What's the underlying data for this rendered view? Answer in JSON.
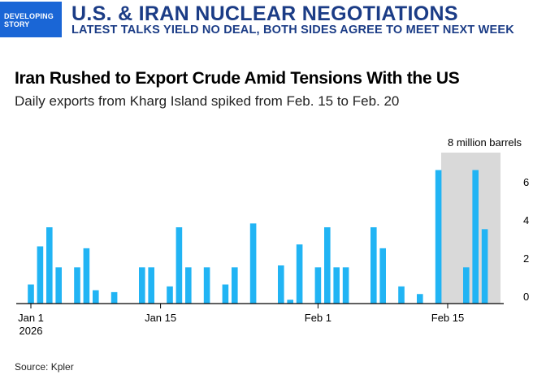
{
  "banner": {
    "badge": "DEVELOPING\nSTORY",
    "headline": "U.S. & IRAN NUCLEAR NEGOTIATIONS",
    "subheadline": "LATEST TALKS YIELD NO DEAL, BOTH SIDES AGREE TO MEET NEXT WEEK"
  },
  "colors": {
    "bar": "#21b4f4",
    "highlight": "#d9d9d9",
    "banner_text": "#1b3c86",
    "badge_bg": "#1a66d6"
  },
  "chart_data": {
    "type": "bar",
    "title": "Iran Rushed to Export Crude Amid Tensions With the US",
    "subtitle": "Daily exports from Kharg Island spiked from Feb. 15 to Feb. 20",
    "unit_label": "8 million barrels",
    "y_ticks": [
      "0",
      "2",
      "4",
      "6"
    ],
    "ylim": [
      0,
      8
    ],
    "x_ticks": [
      {
        "label": "Jan 1",
        "sublabel": "2026",
        "date": "2026-01-01"
      },
      {
        "label": "Jan 15",
        "sublabel": "",
        "date": "2026-01-15"
      },
      {
        "label": "Feb 1",
        "sublabel": "",
        "date": "2026-02-01"
      },
      {
        "label": "Feb 15",
        "sublabel": "",
        "date": "2026-02-15"
      }
    ],
    "highlight_range": [
      "2026-02-15",
      "2026-02-20"
    ],
    "highlight_text": "Daily exports from Kharg Island spiked from Feb. 15 to Feb. 20",
    "dates": [
      "2026-01-01",
      "2026-01-02",
      "2026-01-03",
      "2026-01-04",
      "2026-01-05",
      "2026-01-06",
      "2026-01-07",
      "2026-01-08",
      "2026-01-09",
      "2026-01-10",
      "2026-01-11",
      "2026-01-12",
      "2026-01-13",
      "2026-01-14",
      "2026-01-15",
      "2026-01-16",
      "2026-01-17",
      "2026-01-18",
      "2026-01-19",
      "2026-01-20",
      "2026-01-21",
      "2026-01-22",
      "2026-01-23",
      "2026-01-24",
      "2026-01-25",
      "2026-01-26",
      "2026-01-27",
      "2026-01-28",
      "2026-01-29",
      "2026-01-30",
      "2026-01-31",
      "2026-02-01",
      "2026-02-02",
      "2026-02-03",
      "2026-02-04",
      "2026-02-05",
      "2026-02-06",
      "2026-02-07",
      "2026-02-08",
      "2026-02-09",
      "2026-02-10",
      "2026-02-11",
      "2026-02-12",
      "2026-02-13",
      "2026-02-14",
      "2026-02-15",
      "2026-02-16",
      "2026-02-17",
      "2026-02-18",
      "2026-02-19",
      "2026-02-20"
    ],
    "values": [
      1.0,
      3.0,
      4.0,
      1.9,
      0,
      1.9,
      2.9,
      0.7,
      0,
      0.6,
      0,
      0,
      1.9,
      1.9,
      0,
      0.9,
      4.0,
      1.9,
      0,
      1.9,
      0,
      1.0,
      1.9,
      0,
      4.2,
      0,
      0,
      2.0,
      0.2,
      3.1,
      0,
      1.9,
      4.0,
      1.9,
      1.9,
      0,
      0,
      4.0,
      2.9,
      0,
      0.9,
      0,
      0.5,
      0,
      7.0,
      0,
      0,
      1.9,
      7.0,
      3.9,
      0
    ],
    "grid": false,
    "axis_position": "right"
  },
  "source": "Source: Kpler"
}
